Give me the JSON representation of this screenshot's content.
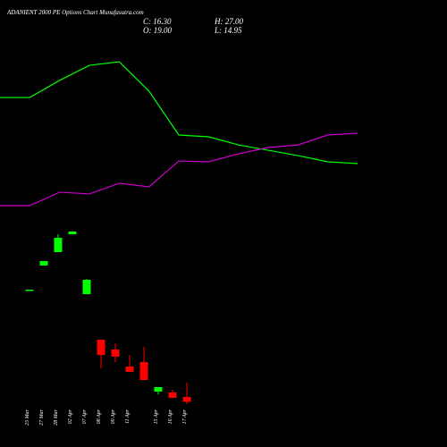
{
  "chart_data": {
    "type": "candlestick",
    "title": "ADANIENT 2000 PE Options Chart Munafasutra.com",
    "info": [
      "C: 16.30",
      "H: 27.00",
      "O: 19.00",
      "L: 14.95"
    ],
    "categories": [
      "25 Mar",
      "27 Mar",
      "28 Mar",
      "02 Apr",
      "07 Apr",
      "08 Apr",
      "09 Apr",
      "11 Apr",
      null,
      "15 Apr",
      "16 Apr",
      "17 Apr"
    ],
    "open": [
      79,
      92.5,
      100,
      110,
      76.5,
      51,
      45.5,
      36,
      38.5,
      22,
      21.5,
      19
    ],
    "high": [
      79,
      95,
      110,
      111.5,
      85,
      51,
      49,
      42.5,
      47,
      24.5,
      23,
      27
    ],
    "low": [
      79,
      92.5,
      100,
      110,
      76.5,
      35,
      38.5,
      33,
      28.5,
      20.5,
      18.5,
      14.95
    ],
    "close": [
      79,
      95,
      108,
      111.5,
      84.5,
      42.5,
      41.5,
      33,
      28.5,
      24.5,
      18.5,
      16.3
    ],
    "up_color": "#00ff00",
    "down_color": "#ff0000",
    "ylim": [
      10,
      130
    ],
    "indicators": {
      "x": [
        0,
        1,
        2,
        3,
        4,
        5,
        6,
        7,
        8,
        9,
        10,
        11,
        12
      ],
      "xlim": [
        0,
        12
      ],
      "y2lim": [
        0,
        100
      ],
      "series": [
        {
          "color": "#00ff00",
          "values": [
            68.9,
            68.9,
            77.5,
            85.1,
            86.9,
            72.1,
            50,
            49.1,
            45,
            42.3,
            39.6,
            36.5,
            35.6
          ]
        },
        {
          "color": "#cc00cc",
          "values": [
            14.4,
            14.4,
            21.2,
            20.3,
            25.7,
            23.9,
            36.9,
            36.5,
            40.5,
            43.7,
            45,
            50,
            50.9
          ]
        }
      ]
    }
  }
}
